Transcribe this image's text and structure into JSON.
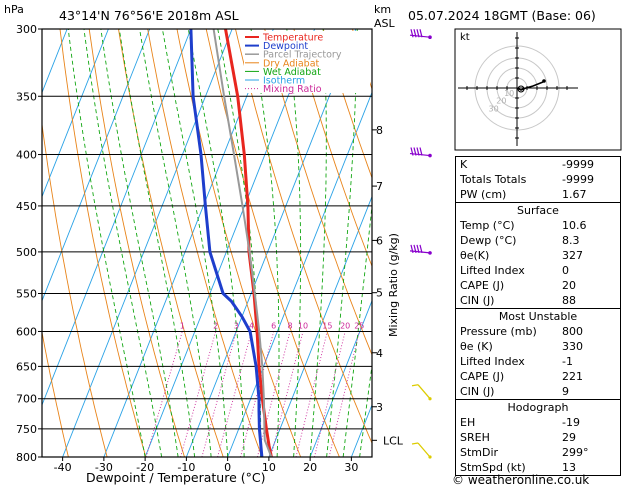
{
  "header": {
    "left_unit": "hPa",
    "location": "43°14'N  76°56'E  2018m  ASL",
    "km_label": "km",
    "asl_label": "ASL",
    "date": "05.07.2024  18GMT  (Base: 06)"
  },
  "chart_data": {
    "type": "line",
    "title": "43°14'N  76°56'E  2018m  ASL",
    "xlabel": "Dewpoint / Temperature (°C)",
    "ylabel": "hPa",
    "y2label": "Mixing Ratio (g/kg)",
    "pressure_levels": [
      300,
      350,
      400,
      450,
      500,
      550,
      600,
      650,
      700,
      750,
      800
    ],
    "xticks": [
      -40,
      -30,
      -20,
      -10,
      0,
      10,
      20,
      30
    ],
    "xlim": [
      -45,
      35
    ],
    "ylim": [
      800,
      300
    ],
    "skew_c_per_log_unit": 41.9,
    "km_ticks": [
      {
        "label": "8",
        "p": 378
      },
      {
        "label": "7",
        "p": 430
      },
      {
        "label": "6",
        "p": 487
      },
      {
        "label": "5",
        "p": 549
      },
      {
        "label": "4",
        "p": 630
      },
      {
        "label": "3",
        "p": 713
      },
      {
        "label": "LCL",
        "p": 770
      }
    ],
    "mixing_ratio_labels": [
      "1",
      "2",
      "3",
      "4",
      "6",
      "8",
      "10",
      "15",
      "20",
      "25"
    ],
    "mixing_ratio_values": [
      1,
      2,
      3,
      4,
      6,
      8,
      10,
      15,
      20,
      25
    ],
    "legend": [
      "Temperature",
      "Dewpoint",
      "Parcel Trajectory",
      "Dry Adiabat",
      "Wet Adiabat",
      "Isotherm",
      "Mixing Ratio"
    ],
    "series": [
      {
        "name": "Temperature",
        "color": "#e8261f",
        "p": [
          800,
          780,
          750,
          720,
          700,
          650,
          600,
          550,
          500,
          450,
          400,
          350,
          300
        ],
        "t": [
          10.6,
          9.0,
          6.7,
          4.4,
          2.8,
          -1.1,
          -4.9,
          -9.3,
          -14.5,
          -19.2,
          -25.0,
          -32.2,
          -41.6
        ]
      },
      {
        "name": "Dewpoint",
        "color": "#1e3ecc",
        "p": [
          800,
          780,
          750,
          720,
          700,
          650,
          600,
          580,
          560,
          550,
          500,
          450,
          400,
          350,
          300
        ],
        "t": [
          8.3,
          7.0,
          5.0,
          3.2,
          2.0,
          -1.8,
          -6.6,
          -10.0,
          -14.0,
          -16.8,
          -24.0,
          -29.5,
          -35.5,
          -43.0,
          -50.0
        ]
      },
      {
        "name": "Parcel Trajectory",
        "color": "#999999",
        "p": [
          800,
          770,
          750,
          700,
          650,
          600,
          550,
          500,
          450,
          400,
          350,
          300
        ],
        "t": [
          10.6,
          7.4,
          6.2,
          3.2,
          -0.3,
          -4.4,
          -9.1,
          -14.4,
          -20.5,
          -27.5,
          -35.5,
          -44.5
        ]
      }
    ]
  },
  "hodograph": {
    "label": "kt",
    "ring_labels": [
      "10",
      "20",
      "30"
    ]
  },
  "wind_barbs": [
    {
      "p": 305,
      "color": "#8800cc"
    },
    {
      "p": 400,
      "color": "#8800cc"
    },
    {
      "p": 500,
      "color": "#8800cc"
    },
    {
      "p": 700,
      "color": "#ddcc00"
    },
    {
      "p": 800,
      "color": "#ddcc00"
    }
  ],
  "indices": {
    "rows1": [
      {
        "label": "K",
        "value": "-9999"
      },
      {
        "label": "Totals Totals",
        "value": "-9999"
      },
      {
        "label": "PW (cm)",
        "value": "1.67"
      }
    ],
    "surface_title": "Surface",
    "surface": [
      {
        "label": "Temp (°C)",
        "value": "10.6"
      },
      {
        "label": "Dewp (°C)",
        "value": "8.3"
      },
      {
        "label": "θe(K)",
        "value": "327"
      },
      {
        "label": "Lifted Index",
        "value": "0"
      },
      {
        "label": "CAPE (J)",
        "value": "20"
      },
      {
        "label": "CIN (J)",
        "value": "88"
      }
    ],
    "unstable_title": "Most Unstable",
    "unstable": [
      {
        "label": "Pressure (mb)",
        "value": "800"
      },
      {
        "label": "θe (K)",
        "value": "330"
      },
      {
        "label": "Lifted Index",
        "value": "-1"
      },
      {
        "label": "CAPE (J)",
        "value": "221"
      },
      {
        "label": "CIN (J)",
        "value": "9"
      }
    ],
    "hodo_title": "Hodograph",
    "hodo": [
      {
        "label": "EH",
        "value": "-19"
      },
      {
        "label": "SREH",
        "value": "29"
      },
      {
        "label": "StmDir",
        "value": "299°"
      },
      {
        "label": "StmSpd (kt)",
        "value": "13"
      }
    ]
  },
  "footer": "© weatheronline.co.uk"
}
